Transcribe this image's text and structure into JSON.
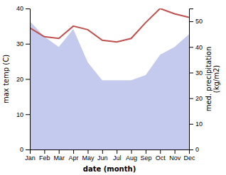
{
  "chart_data": {
    "type": "line",
    "categories": [
      "Jan",
      "Feb",
      "Mar",
      "Apr",
      "May",
      "Jun",
      "Jul",
      "Aug",
      "Sep",
      "Oct",
      "Nov",
      "Dec"
    ],
    "xlabel": "date (month)",
    "ylabel": "max temp (C)",
    "y2label": "med. precipitation\n(kg/m2)",
    "ylim": [
      0,
      40
    ],
    "yticks": [
      0,
      10,
      20,
      30,
      40
    ],
    "y2lim": [
      0,
      55
    ],
    "y2ticks": [
      0,
      10,
      20,
      30,
      40,
      50
    ],
    "series": [
      {
        "type": "area",
        "axis": "y2",
        "color": "#b0b8e8",
        "values": [
          50,
          44,
          40,
          47,
          34,
          27,
          27,
          27,
          29,
          37,
          40,
          45
        ]
      },
      {
        "type": "line",
        "color": "#c0504d",
        "values": [
          34.5,
          32.0,
          31.5,
          35.0,
          34.0,
          31.0,
          30.5,
          31.5,
          36.0,
          40.0,
          38.5,
          37.5
        ]
      }
    ]
  }
}
